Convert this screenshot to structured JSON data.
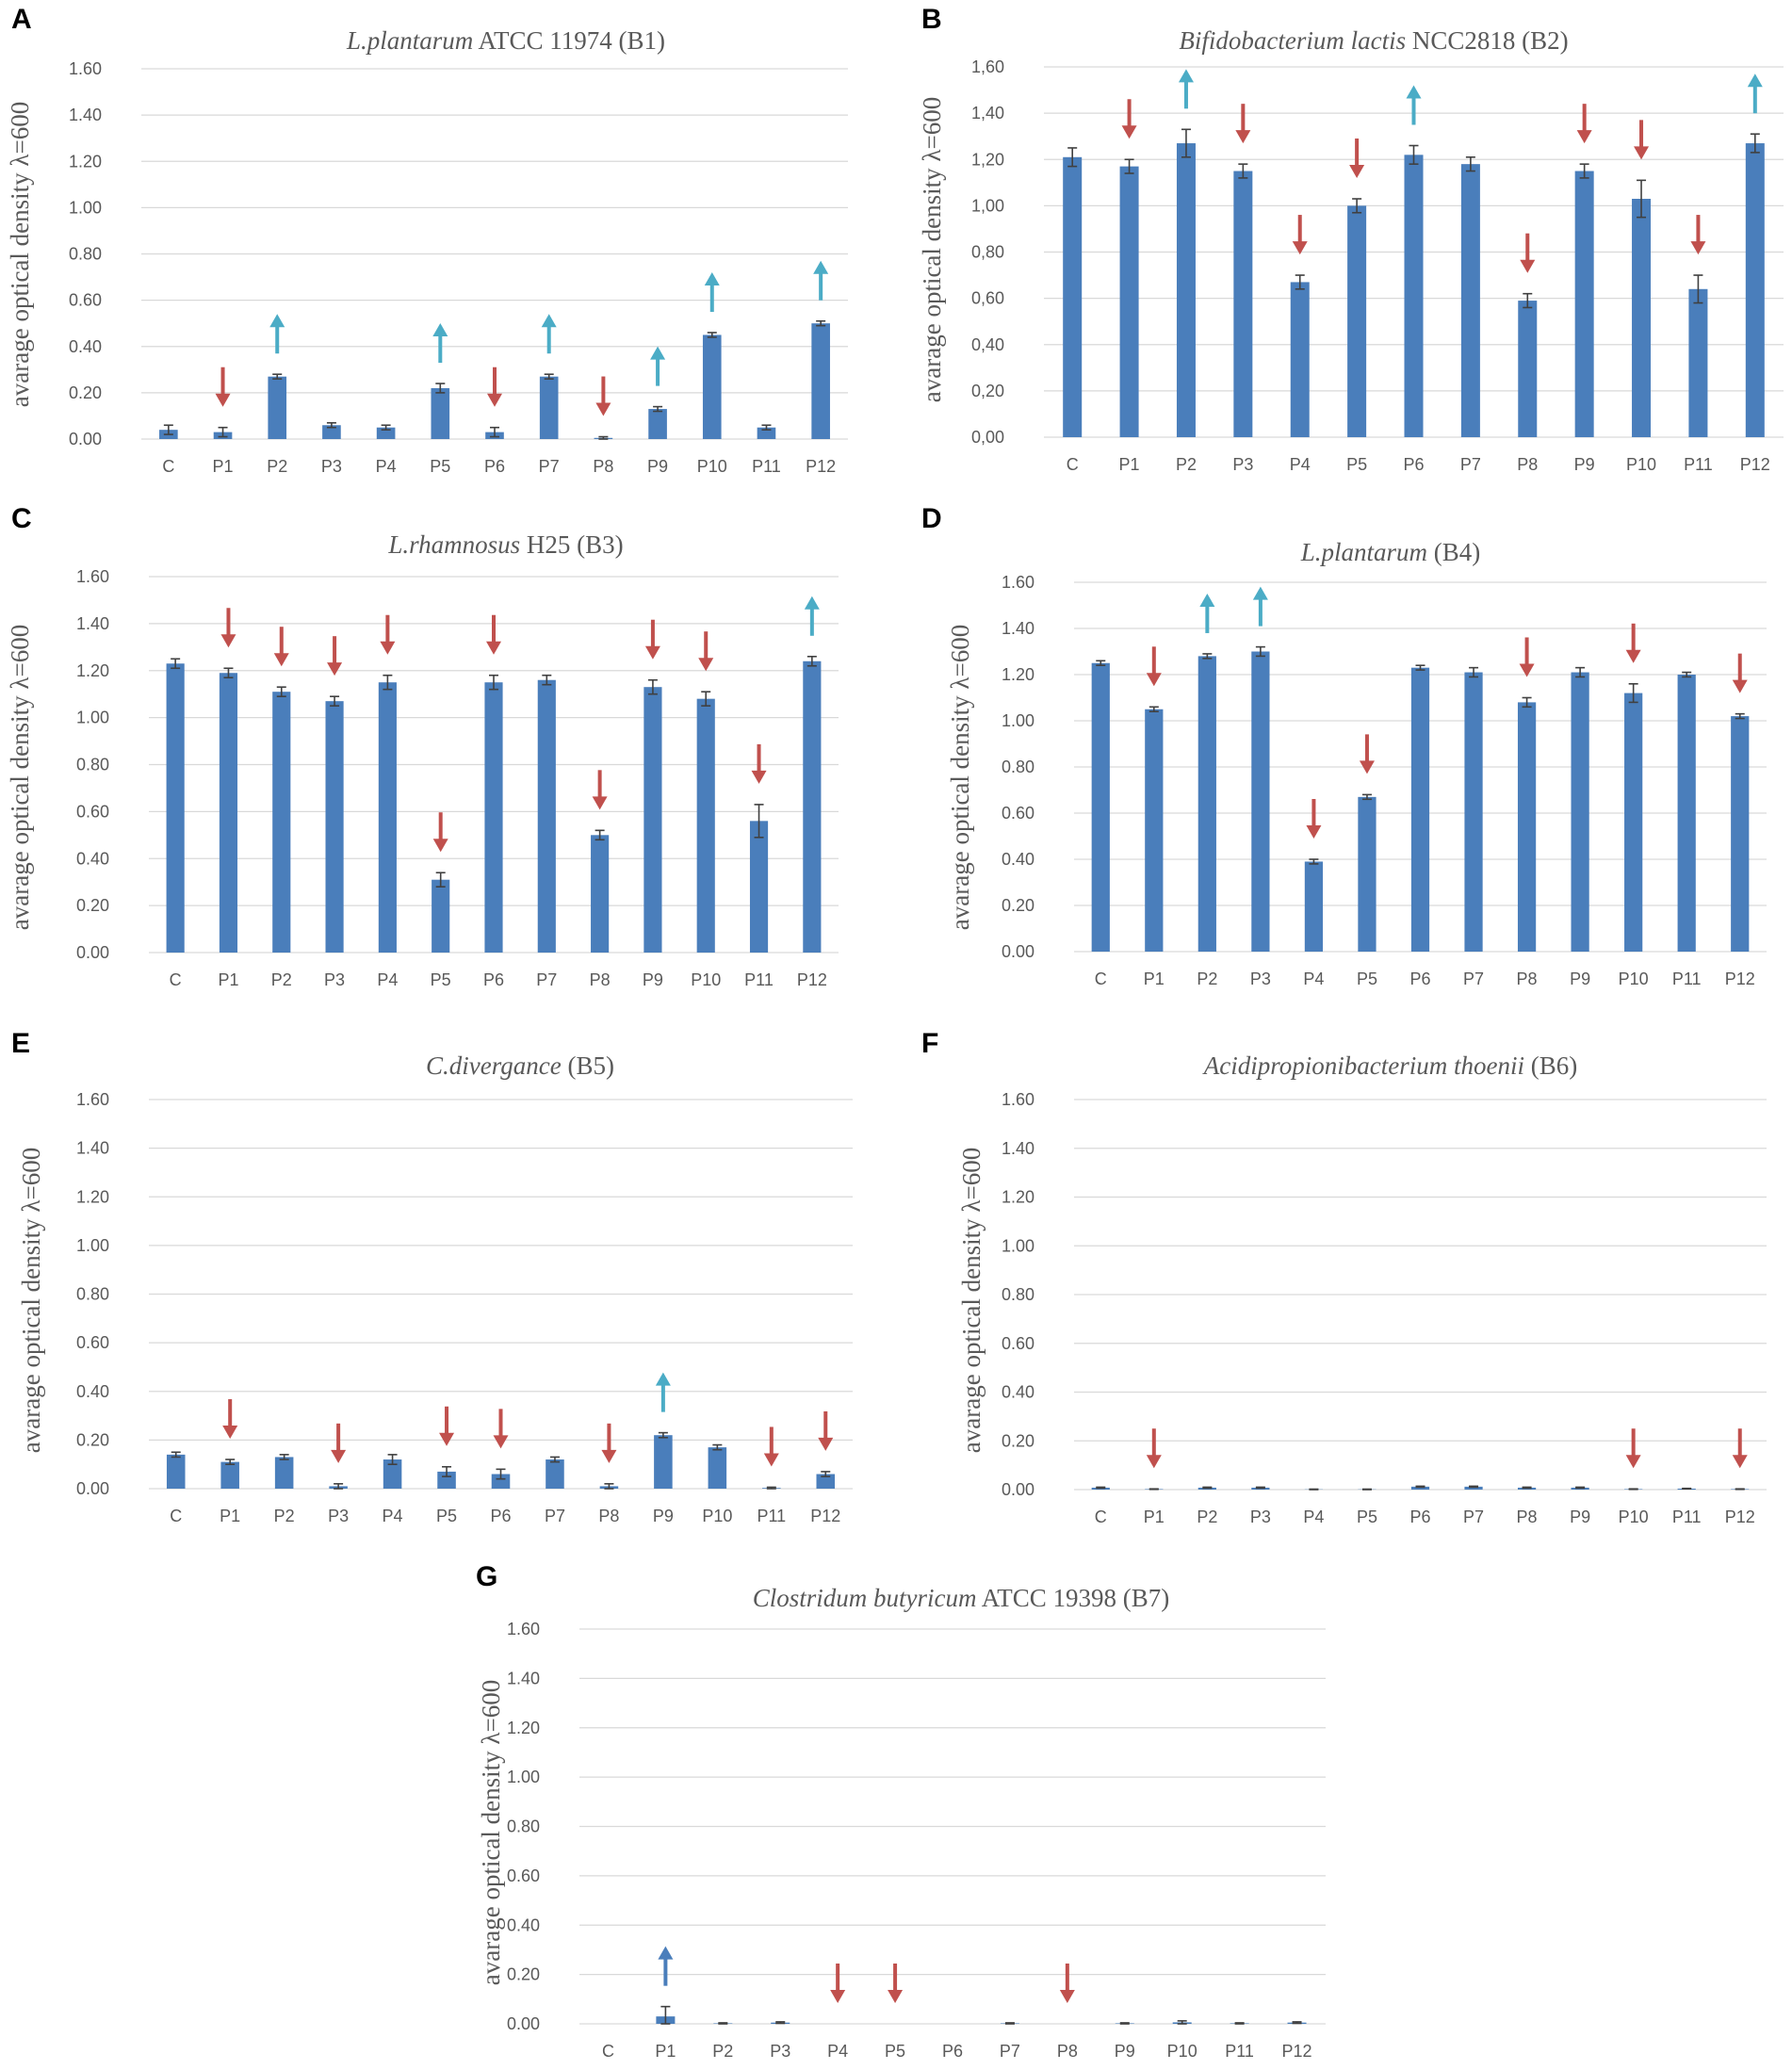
{
  "colors": {
    "bar": "#4a7ebb",
    "grid": "#d9d9d9",
    "axis_text": "#595959",
    "arrow_up": "#4bacc6",
    "arrow_up_panel_g": "#4a7ebb",
    "arrow_down": "#c0504d",
    "error_bar": "#404040"
  },
  "chart_data": [
    {
      "panel": "A",
      "type": "bar",
      "title_italic": "L.plantarum",
      "title_rest": "ATCC 11974 (B1)",
      "ylabel": "avarage optical density  λ=600",
      "ylim": [
        0,
        1.6
      ],
      "yticks": [
        "0.00",
        "0.20",
        "0.40",
        "0.60",
        "0.80",
        "1.00",
        "1.20",
        "1.40",
        "1.60"
      ],
      "grid": true,
      "categories": [
        "C",
        "P1",
        "P2",
        "P3",
        "P4",
        "P5",
        "P6",
        "P7",
        "P8",
        "P9",
        "P10",
        "P11",
        "P12"
      ],
      "values": [
        0.04,
        0.03,
        0.27,
        0.06,
        0.05,
        0.22,
        0.03,
        0.27,
        0.005,
        0.13,
        0.45,
        0.05,
        0.5
      ],
      "errors": [
        0.02,
        0.02,
        0.01,
        0.01,
        0.01,
        0.02,
        0.02,
        0.01,
        0.005,
        0.01,
        0.01,
        0.01,
        0.01
      ],
      "arrows": [
        "",
        "down",
        "up",
        "",
        "",
        "up",
        "down",
        "up",
        "down",
        "up",
        "up",
        "",
        "up"
      ]
    },
    {
      "panel": "B",
      "type": "bar",
      "title_italic": "Bifidobacterium lactis",
      "title_rest": "NCC2818 (B2)",
      "ylabel": "avarage optical density  λ=600",
      "ylim": [
        0,
        1.6
      ],
      "yticks": [
        "0,00",
        "0,20",
        "0,40",
        "0,60",
        "0,80",
        "1,00",
        "1,20",
        "1,40",
        "1,60"
      ],
      "grid": true,
      "categories": [
        "C",
        "P1",
        "P2",
        "P3",
        "P4",
        "P5",
        "P6",
        "P7",
        "P8",
        "P9",
        "P10",
        "P11",
        "P12"
      ],
      "values": [
        1.21,
        1.17,
        1.27,
        1.15,
        0.67,
        1.0,
        1.22,
        1.18,
        0.59,
        1.15,
        1.03,
        0.64,
        1.27
      ],
      "errors": [
        0.04,
        0.03,
        0.06,
        0.03,
        0.03,
        0.03,
        0.04,
        0.03,
        0.03,
        0.03,
        0.08,
        0.06,
        0.04
      ],
      "arrows": [
        "",
        "down",
        "up",
        "down",
        "down",
        "down",
        "up",
        "",
        "down",
        "down",
        "down",
        "down",
        "up"
      ]
    },
    {
      "panel": "C",
      "type": "bar",
      "title_italic": "L.rhamnosus",
      "title_rest": "H25 (B3)",
      "ylabel": "avarage optical density  λ=600",
      "ylim": [
        0,
        1.6
      ],
      "yticks": [
        "0.00",
        "0.20",
        "0.40",
        "0.60",
        "0.80",
        "1.00",
        "1.20",
        "1.40",
        "1.60"
      ],
      "grid": true,
      "categories": [
        "C",
        "P1",
        "P2",
        "P3",
        "P4",
        "P5",
        "P6",
        "P7",
        "P8",
        "P9",
        "P10",
        "P11",
        "P12"
      ],
      "values": [
        1.23,
        1.19,
        1.11,
        1.07,
        1.15,
        0.31,
        1.15,
        1.16,
        0.5,
        1.13,
        1.08,
        0.56,
        1.24
      ],
      "errors": [
        0.02,
        0.02,
        0.02,
        0.02,
        0.03,
        0.03,
        0.03,
        0.02,
        0.02,
        0.03,
        0.03,
        0.07,
        0.02
      ],
      "arrows": [
        "",
        "down",
        "down",
        "down",
        "down",
        "down",
        "down",
        "",
        "down",
        "down",
        "down",
        "down",
        "up"
      ]
    },
    {
      "panel": "D",
      "type": "bar",
      "title_italic": "L.plantarum",
      "title_rest": "(B4)",
      "ylabel": "avarage optical density  λ=600",
      "ylim": [
        0,
        1.6
      ],
      "yticks": [
        "0.00",
        "0.20",
        "0.40",
        "0.60",
        "0.80",
        "1.00",
        "1.20",
        "1.40",
        "1.60"
      ],
      "grid": true,
      "categories": [
        "C",
        "P1",
        "P2",
        "P3",
        "P4",
        "P5",
        "P6",
        "P7",
        "P8",
        "P9",
        "P10",
        "P11",
        "P12"
      ],
      "values": [
        1.25,
        1.05,
        1.28,
        1.3,
        0.39,
        0.67,
        1.23,
        1.21,
        1.08,
        1.21,
        1.12,
        1.2,
        1.02
      ],
      "errors": [
        0.01,
        0.01,
        0.01,
        0.02,
        0.01,
        0.01,
        0.01,
        0.02,
        0.02,
        0.02,
        0.04,
        0.01,
        0.01
      ],
      "arrows": [
        "",
        "down",
        "up",
        "up",
        "down",
        "down",
        "",
        "",
        "down",
        "",
        "down",
        "",
        "down"
      ]
    },
    {
      "panel": "E",
      "type": "bar",
      "title_italic": "C.divergance",
      "title_rest": "(B5)",
      "ylabel": "avarage optical density  λ=600",
      "ylim": [
        0,
        1.6
      ],
      "yticks": [
        "0.00",
        "0.20",
        "0.40",
        "0.60",
        "0.80",
        "1.00",
        "1.20",
        "1.40",
        "1.60"
      ],
      "grid": true,
      "categories": [
        "C",
        "P1",
        "P2",
        "P3",
        "P4",
        "P5",
        "P6",
        "P7",
        "P8",
        "P9",
        "P10",
        "P11",
        "P12"
      ],
      "values": [
        0.14,
        0.11,
        0.13,
        0.01,
        0.12,
        0.07,
        0.06,
        0.12,
        0.01,
        0.22,
        0.17,
        0.003,
        0.06
      ],
      "errors": [
        0.01,
        0.01,
        0.01,
        0.01,
        0.02,
        0.02,
        0.02,
        0.01,
        0.01,
        0.01,
        0.01,
        0.003,
        0.01
      ],
      "arrows": [
        "",
        "down",
        "",
        "down",
        "",
        "down",
        "down",
        "",
        "down",
        "up",
        "",
        "down",
        "down"
      ]
    },
    {
      "panel": "F",
      "type": "bar",
      "title_italic": "Acidipropionibacterium thoenii",
      "title_rest": "(B6)",
      "ylabel": "avarage optical density  λ=600",
      "ylim": [
        0,
        1.6
      ],
      "yticks": [
        "0.00",
        "0.20",
        "0.40",
        "0.60",
        "0.80",
        "1.00",
        "1.20",
        "1.40",
        "1.60"
      ],
      "grid": true,
      "categories": [
        "C",
        "P1",
        "P2",
        "P3",
        "P4",
        "P5",
        "P6",
        "P7",
        "P8",
        "P9",
        "P10",
        "P11",
        "P12"
      ],
      "values": [
        0.008,
        0.002,
        0.008,
        0.008,
        0.001,
        0.001,
        0.012,
        0.012,
        0.008,
        0.008,
        0.002,
        0.004,
        0.002
      ],
      "errors": [
        0.002,
        0.001,
        0.002,
        0.002,
        0.001,
        0.001,
        0.002,
        0.002,
        0.002,
        0.002,
        0.001,
        0.001,
        0.001
      ],
      "arrows": [
        "",
        "down",
        "",
        "",
        "",
        "",
        "",
        "",
        "",
        "",
        "down",
        "",
        "down"
      ]
    },
    {
      "panel": "G",
      "type": "bar",
      "title_italic": "Clostridum butyricum",
      "title_rest": "ATCC 19398 (B7)",
      "ylabel": "avarage optical density  λ=600",
      "ylim": [
        0,
        1.6
      ],
      "yticks": [
        "0.00",
        "0.20",
        "0.40",
        "0.60",
        "0.80",
        "1.00",
        "1.20",
        "1.40",
        "1.60"
      ],
      "grid": true,
      "categories": [
        "C",
        "P1",
        "P2",
        "P3",
        "P4",
        "P5",
        "P6",
        "P7",
        "P8",
        "P9",
        "P10",
        "P11",
        "P12"
      ],
      "values": [
        0.0,
        0.03,
        0.002,
        0.005,
        0.0,
        0.0,
        0.0,
        0.002,
        0.0,
        0.002,
        0.006,
        0.002,
        0.005
      ],
      "errors": [
        0.0,
        0.04,
        0.002,
        0.003,
        0.0,
        0.0,
        0.0,
        0.002,
        0.0,
        0.002,
        0.006,
        0.002,
        0.003
      ],
      "arrows": [
        "",
        "up",
        "",
        "",
        "down",
        "down",
        "",
        "",
        "down",
        "",
        "",
        "",
        ""
      ]
    }
  ]
}
